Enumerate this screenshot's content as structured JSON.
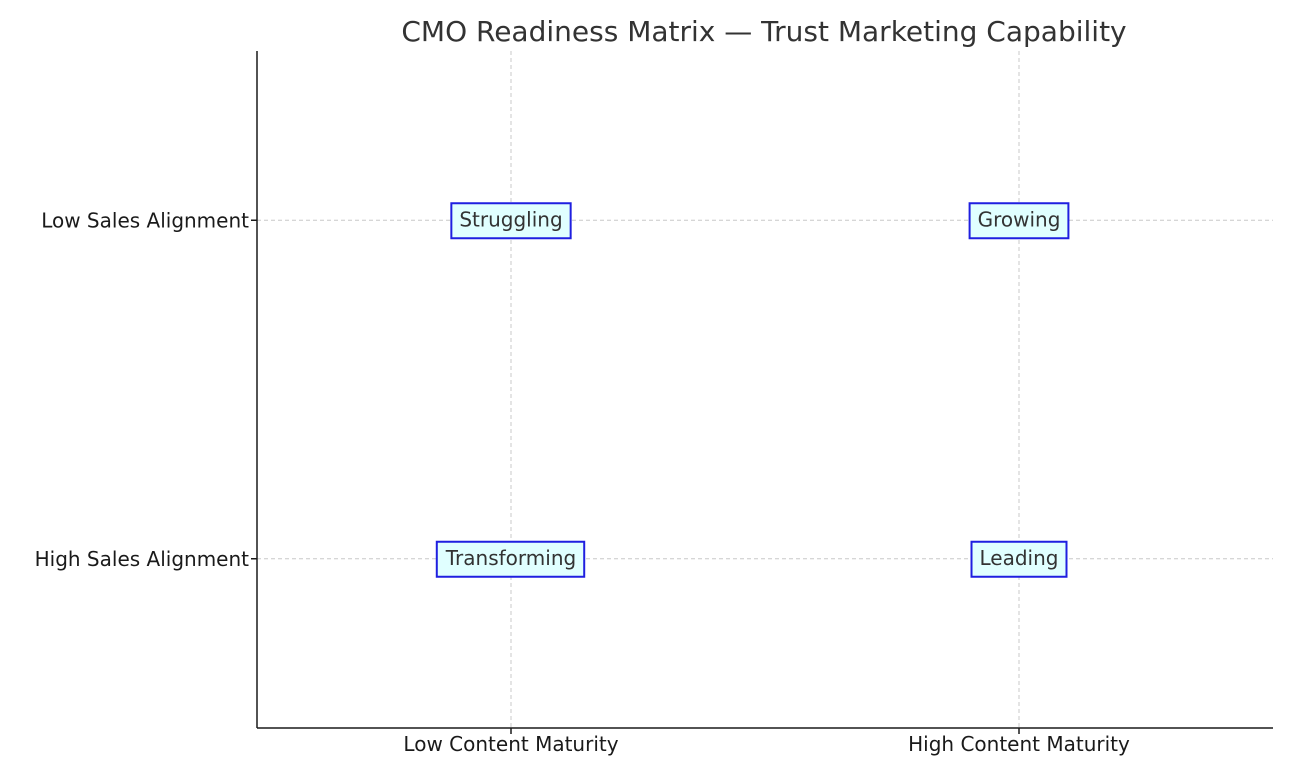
{
  "chart_data": {
    "type": "scatter",
    "title": "CMO Readiness Matrix — Trust Marketing Capability",
    "xlabel": "",
    "ylabel": "",
    "x_categories": [
      "Low Content Maturity",
      "High Content Maturity"
    ],
    "y_categories": [
      "High Sales Alignment",
      "Low Sales Alignment"
    ],
    "xlim": [
      -0.5,
      1.5
    ],
    "ylim": [
      -0.5,
      1.5
    ],
    "grid": true,
    "points": [
      {
        "x": 0,
        "y": 1,
        "label": "Struggling"
      },
      {
        "x": 1,
        "y": 1,
        "label": "Growing"
      },
      {
        "x": 0,
        "y": 0,
        "label": "Transforming"
      },
      {
        "x": 1,
        "y": 0,
        "label": "Leading"
      }
    ],
    "colors": {
      "box_fill": "#e0ffff",
      "box_stroke": "#1f1fe0",
      "grid": "#c8c8c8",
      "axis": "#1a1a1a"
    }
  }
}
